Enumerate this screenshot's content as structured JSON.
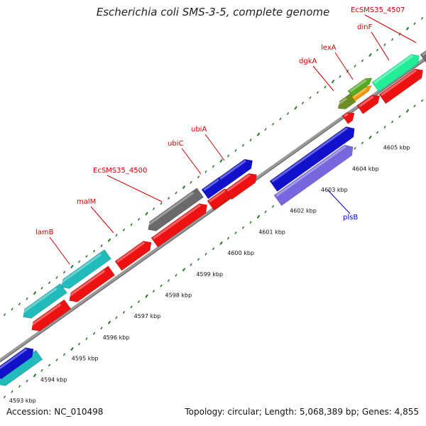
{
  "title": "Escherichia coli SMS-3-5, complete genome",
  "footer": {
    "accession": "Accession: NC_010498",
    "summary": "Topology: circular; Length: 5,068,389 bp; Genes: 4,855"
  },
  "colors": {
    "label": "#cc0000",
    "label_blue": "#0000cc",
    "backbone": "#888888",
    "tick": "#2a7a2a",
    "cyan": "#22bbbb",
    "red": "#ee1111",
    "gray": "#6a6a6a",
    "blue": "#1111cc",
    "lightblue": "#7766dd",
    "olive": "#6b8e23",
    "orange": "#ee9900",
    "green": "#55aa22",
    "mint": "#22ee99"
  },
  "kbp_labels": [
    "4593 kbp",
    "4594 kbp",
    "4595 kbp",
    "4596 kbp",
    "4597 kbp",
    "4598 kbp",
    "4599 kbp",
    "4600 kbp",
    "4601 kbp",
    "4602 kbp",
    "4603 kbp",
    "4604 kbp",
    "4605 kbp"
  ],
  "gene_labels": [
    {
      "text": "lamB",
      "color": "label"
    },
    {
      "text": "malM",
      "color": "label"
    },
    {
      "text": "EcSMS35_4500",
      "color": "label"
    },
    {
      "text": "ubiC",
      "color": "label"
    },
    {
      "text": "ubiA",
      "color": "label"
    },
    {
      "text": "dgkA",
      "color": "label"
    },
    {
      "text": "lexA",
      "color": "label"
    },
    {
      "text": "dinF",
      "color": "label"
    },
    {
      "text": "EcSMS35_4507",
      "color": "label"
    },
    {
      "text": "plsB",
      "color": "label_blue"
    }
  ]
}
